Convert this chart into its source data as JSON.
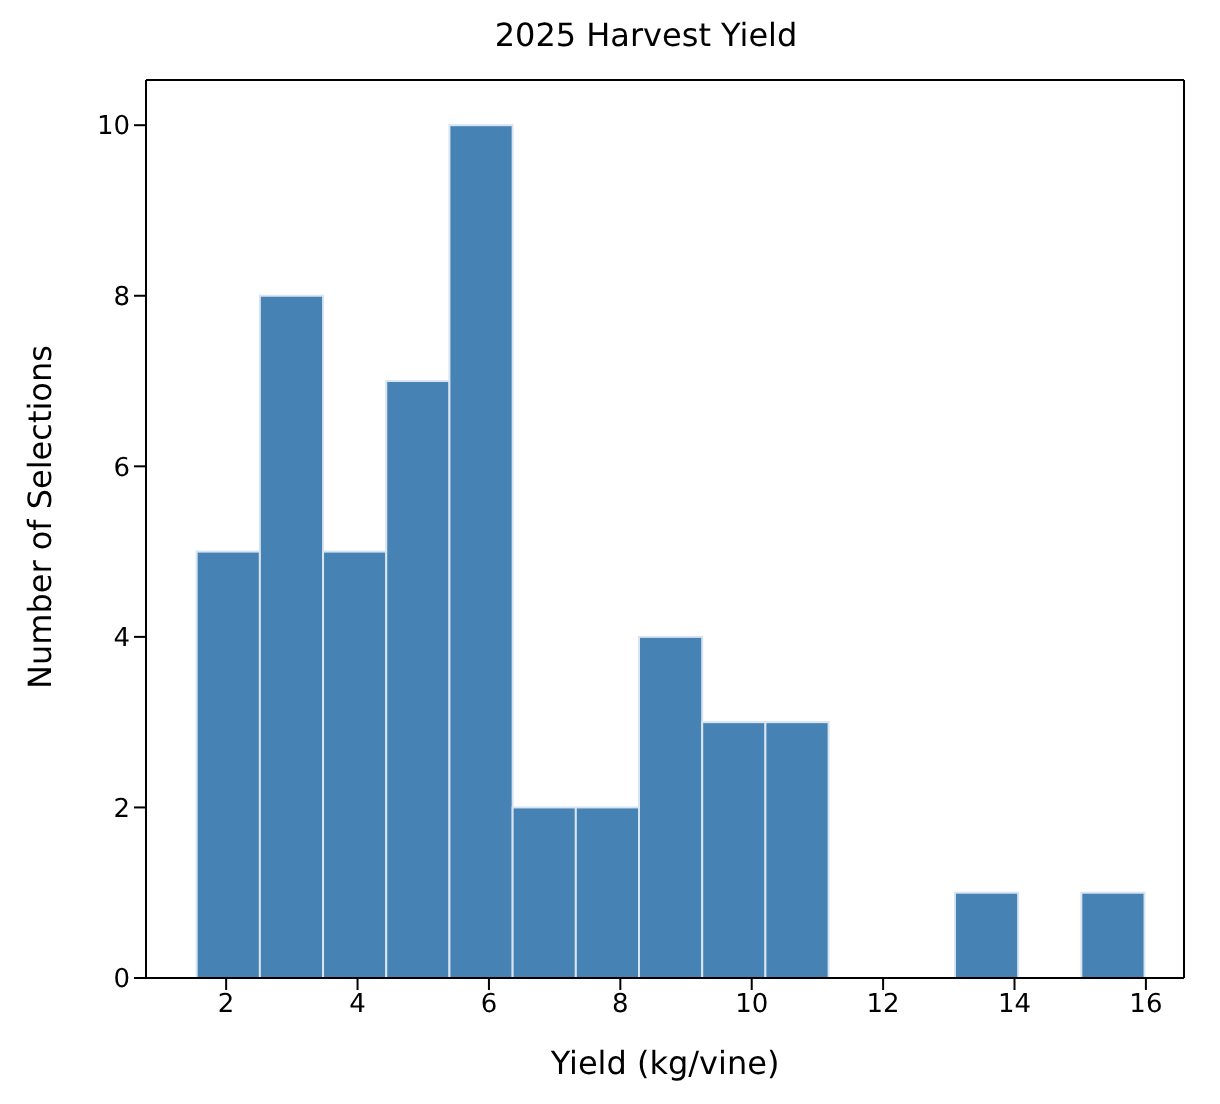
{
  "chart_data": {
    "type": "histogram",
    "title": "2025 Harvest Yield",
    "xlabel": "Yield (kg/vine)",
    "ylabel": "Number of Selections",
    "bins": [
      1.55,
      2.51,
      3.47,
      4.43,
      5.39,
      6.35,
      7.31,
      8.27,
      9.23,
      10.19,
      11.15,
      12.11,
      13.07,
      14.03,
      14.99,
      15.95
    ],
    "values": [
      5,
      8,
      5,
      7,
      10,
      2,
      2,
      4,
      3,
      3,
      0,
      0,
      1,
      0,
      1
    ],
    "color": "#4682b4",
    "xlim": [
      0.78,
      16.58
    ],
    "xticks": [
      2,
      4,
      6,
      8,
      10,
      12,
      14,
      16
    ],
    "ylim": [
      0,
      10.53
    ],
    "yticks": [
      0,
      2,
      4,
      6,
      8,
      10
    ],
    "grid": false,
    "legend": false
  }
}
